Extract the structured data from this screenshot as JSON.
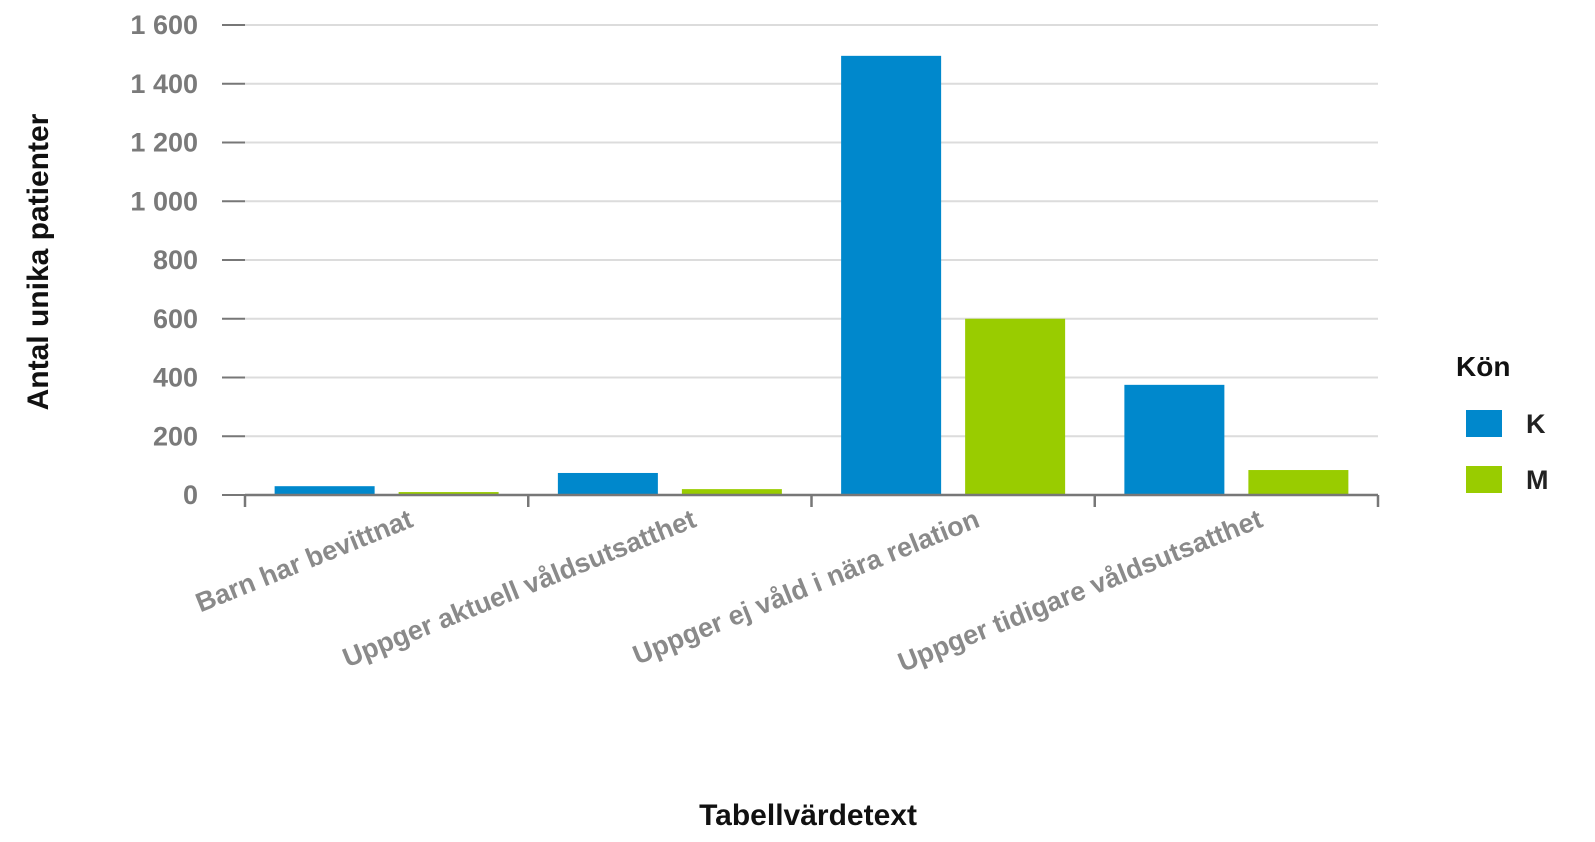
{
  "chart_data": {
    "type": "bar",
    "title": "",
    "xlabel": "Tabellvärdetext",
    "ylabel": "Antal unika patienter",
    "ylim": [
      0,
      1600
    ],
    "yticks": [
      0,
      200,
      400,
      600,
      800,
      1000,
      1200,
      1400,
      1600
    ],
    "ytick_labels": [
      "0",
      "200",
      "400",
      "600",
      "800",
      "1 000",
      "1 200",
      "1 400",
      "1 600"
    ],
    "categories": [
      "Barn har bevittnat",
      "Uppger aktuell våldsutsatthet",
      "Uppger ej våld i nära relation",
      "Uppger tidigare våldsutsatthet"
    ],
    "series": [
      {
        "name": "K",
        "color": "#0088cc",
        "values": [
          30,
          75,
          1495,
          375
        ]
      },
      {
        "name": "M",
        "color": "#99cc00",
        "values": [
          10,
          20,
          600,
          85
        ]
      }
    ],
    "grid": true,
    "legend": {
      "title": "Kön",
      "position": "right"
    }
  }
}
